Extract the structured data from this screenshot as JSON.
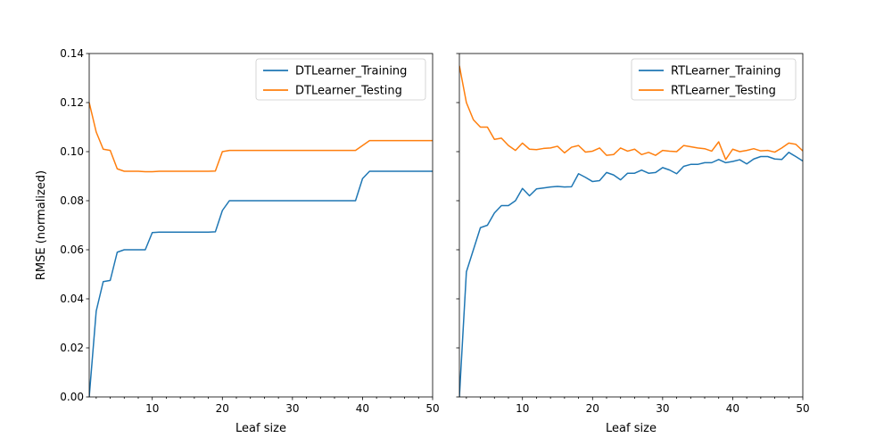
{
  "chart_data": [
    {
      "type": "line",
      "xlabel": "Leaf size",
      "ylabel": "RMSE (normalized)",
      "xlim": [
        1,
        50
      ],
      "ylim": [
        0,
        0.14
      ],
      "xticks": [
        "10",
        "20",
        "30",
        "40",
        "50"
      ],
      "yticks": [
        "0.00",
        "0.02",
        "0.04",
        "0.06",
        "0.08",
        "0.10",
        "0.12",
        "0.14"
      ],
      "legend_position": "top-right",
      "x": [
        1,
        2,
        3,
        4,
        5,
        6,
        7,
        8,
        9,
        10,
        11,
        12,
        13,
        14,
        15,
        16,
        17,
        18,
        19,
        20,
        21,
        22,
        23,
        24,
        25,
        26,
        27,
        28,
        29,
        30,
        31,
        32,
        33,
        34,
        35,
        36,
        37,
        38,
        39,
        40,
        41,
        42,
        43,
        44,
        45,
        46,
        47,
        48,
        49,
        50
      ],
      "series": [
        {
          "name": "DTLearner_Training",
          "color": "#1f77b4",
          "values": [
            0.0,
            0.035,
            0.047,
            0.0475,
            0.059,
            0.06,
            0.06,
            0.06,
            0.06,
            0.067,
            0.0672,
            0.0672,
            0.0672,
            0.0672,
            0.0672,
            0.0672,
            0.0672,
            0.0672,
            0.0673,
            0.076,
            0.08,
            0.08,
            0.08,
            0.08,
            0.08,
            0.08,
            0.08,
            0.08,
            0.08,
            0.08,
            0.08,
            0.08,
            0.08,
            0.08,
            0.08,
            0.08,
            0.08,
            0.08,
            0.08,
            0.089,
            0.092,
            0.092,
            0.092,
            0.092,
            0.092,
            0.092,
            0.092,
            0.092,
            0.092,
            0.092
          ]
        },
        {
          "name": "DTLearner_Testing",
          "color": "#ff7f0e",
          "values": [
            0.12,
            0.108,
            0.101,
            0.1005,
            0.093,
            0.092,
            0.092,
            0.092,
            0.0918,
            0.0918,
            0.092,
            0.092,
            0.092,
            0.092,
            0.092,
            0.092,
            0.092,
            0.092,
            0.0921,
            0.1,
            0.1005,
            0.1005,
            0.1005,
            0.1005,
            0.1005,
            0.1005,
            0.1005,
            0.1005,
            0.1005,
            0.1005,
            0.1005,
            0.1005,
            0.1005,
            0.1005,
            0.1005,
            0.1005,
            0.1005,
            0.1005,
            0.1005,
            0.1025,
            0.1045,
            0.1045,
            0.1045,
            0.1045,
            0.1045,
            0.1045,
            0.1045,
            0.1045,
            0.1045,
            0.1045
          ]
        }
      ]
    },
    {
      "type": "line",
      "xlabel": "Leaf size",
      "ylabel": "",
      "xlim": [
        1,
        50
      ],
      "ylim": [
        0,
        0.14
      ],
      "xticks": [
        "10",
        "20",
        "30",
        "40",
        "50"
      ],
      "legend_position": "top-right",
      "shared_y_axis": true,
      "x": [
        1,
        2,
        3,
        4,
        5,
        6,
        7,
        8,
        9,
        10,
        11,
        12,
        13,
        14,
        15,
        16,
        17,
        18,
        19,
        20,
        21,
        22,
        23,
        24,
        25,
        26,
        27,
        28,
        29,
        30,
        31,
        32,
        33,
        34,
        35,
        36,
        37,
        38,
        39,
        40,
        41,
        42,
        43,
        44,
        45,
        46,
        47,
        48,
        49,
        50
      ],
      "series": [
        {
          "name": "RTLearner_Training",
          "color": "#1f77b4",
          "values": [
            0.0,
            0.051,
            0.06,
            0.069,
            0.07,
            0.075,
            0.078,
            0.078,
            0.08,
            0.085,
            0.082,
            0.0848,
            0.0852,
            0.0856,
            0.0858,
            0.0856,
            0.0857,
            0.091,
            0.0895,
            0.0878,
            0.0882,
            0.0915,
            0.0905,
            0.0885,
            0.0912,
            0.0912,
            0.0925,
            0.0912,
            0.0915,
            0.0935,
            0.0925,
            0.091,
            0.094,
            0.0948,
            0.0948,
            0.0955,
            0.0955,
            0.0968,
            0.0955,
            0.096,
            0.0967,
            0.095,
            0.097,
            0.098,
            0.098,
            0.097,
            0.0968,
            0.0997,
            0.098,
            0.0962
          ]
        },
        {
          "name": "RTLearner_Testing",
          "color": "#ff7f0e",
          "values": [
            0.135,
            0.12,
            0.113,
            0.11,
            0.11,
            0.105,
            0.1055,
            0.1025,
            0.1005,
            0.1035,
            0.101,
            0.1008,
            0.1013,
            0.1015,
            0.1022,
            0.0995,
            0.1018,
            0.1025,
            0.0998,
            0.1002,
            0.1015,
            0.0985,
            0.0988,
            0.1015,
            0.1002,
            0.101,
            0.0988,
            0.0997,
            0.0985,
            0.1005,
            0.1002,
            0.1,
            0.1025,
            0.102,
            0.1015,
            0.1012,
            0.1002,
            0.104,
            0.0968,
            0.101,
            0.1,
            0.1005,
            0.1012,
            0.1003,
            0.1005,
            0.0998,
            0.1015,
            0.1035,
            0.103,
            0.1003
          ]
        }
      ]
    }
  ]
}
